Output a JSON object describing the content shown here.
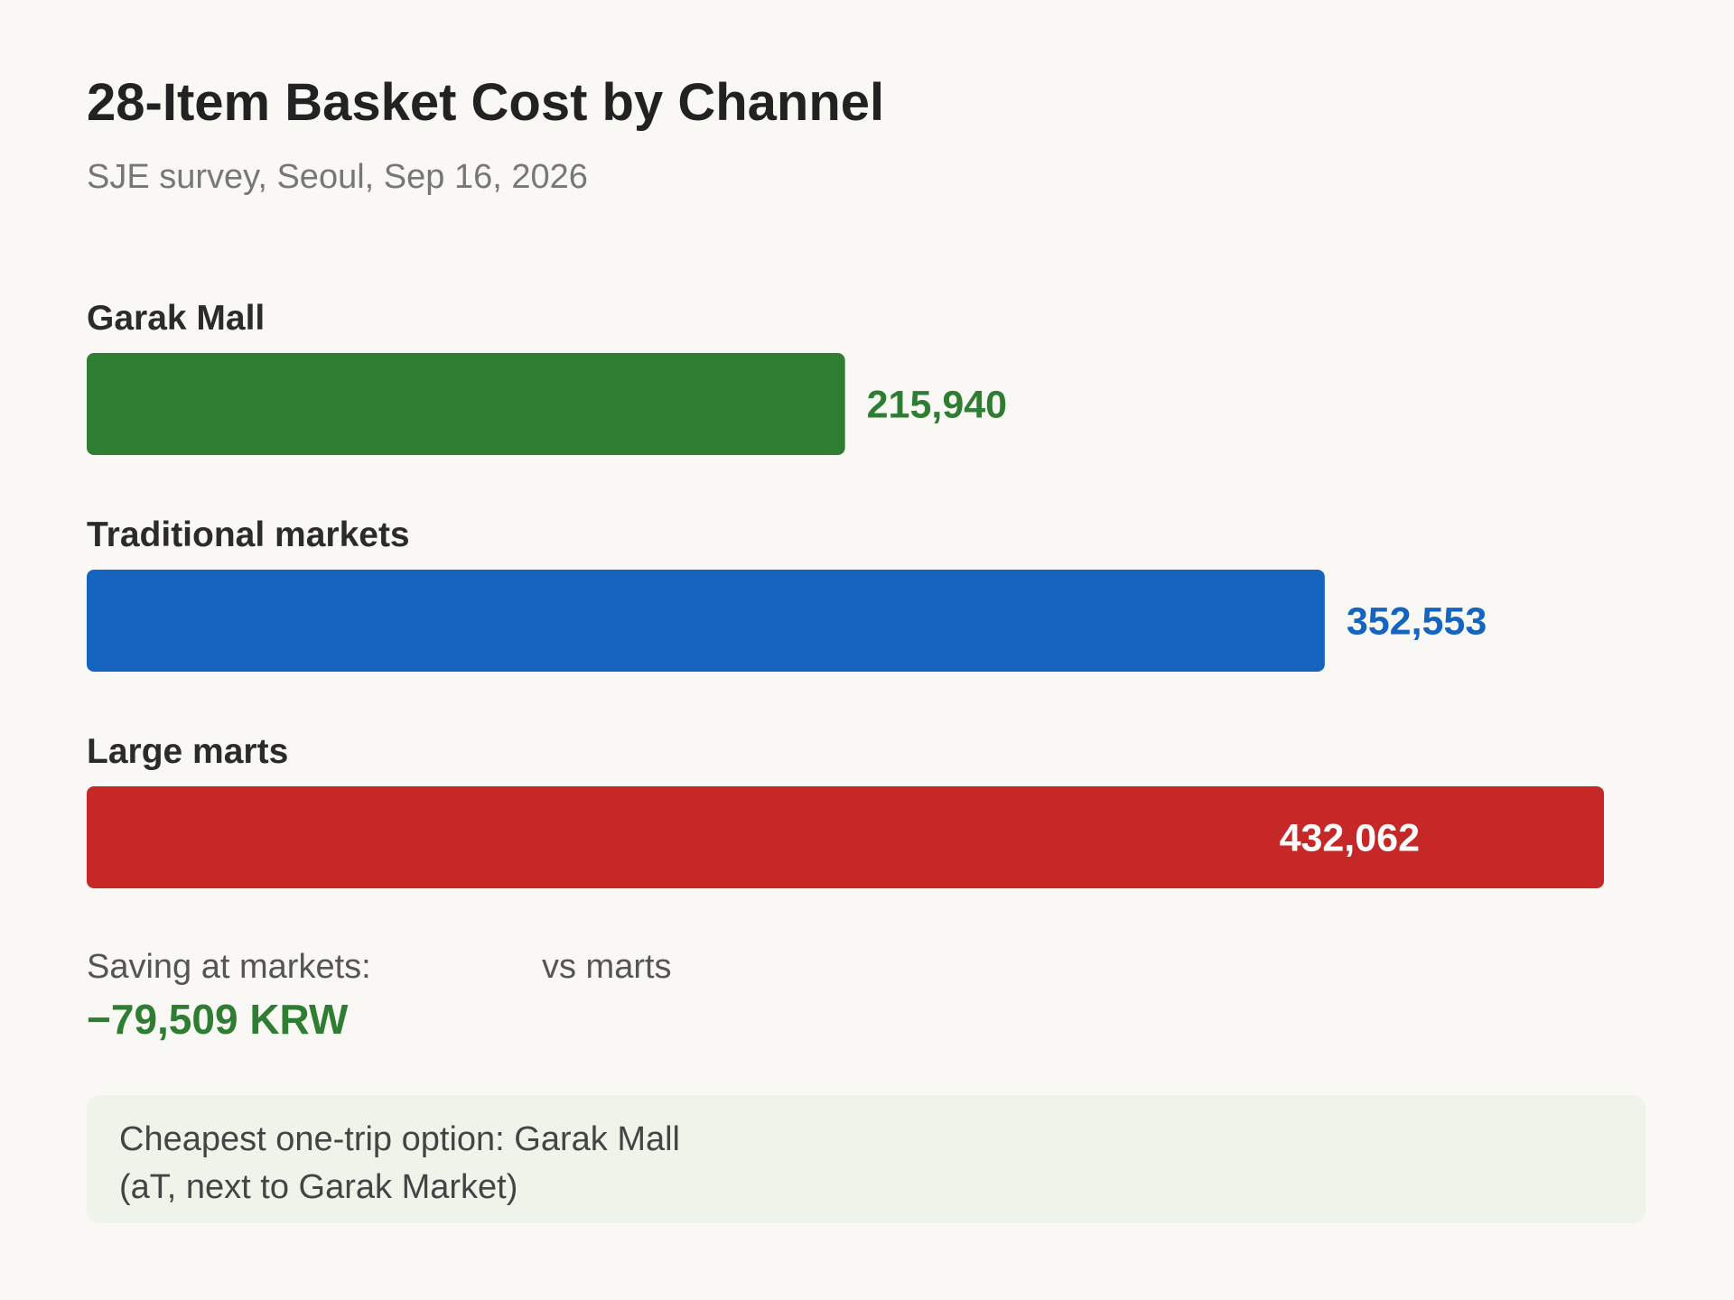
{
  "chart_data": {
    "type": "bar",
    "orientation": "horizontal",
    "title": "28-Item Basket Cost by Channel",
    "subtitle": "SJE survey, Seoul, Sep 16, 2026",
    "categories": [
      "Garak Mall",
      "Traditional markets",
      "Large marts"
    ],
    "values": [
      215940,
      352553,
      432062
    ],
    "value_labels": [
      "215,940",
      "352,553",
      "432,062"
    ],
    "colors": [
      "#2e7d32",
      "#1565c0",
      "#c62828"
    ],
    "xlim": [
      0,
      432062
    ],
    "grid": false,
    "legend": "none"
  },
  "summary": {
    "saving_label": "Saving at markets:",
    "saving_value": "−79,509 KRW",
    "saving_suffix": "vs marts"
  },
  "note": {
    "line1": "Cheapest one-trip option: Garak Mall",
    "line2": "(aT, next to Garak Market)"
  }
}
